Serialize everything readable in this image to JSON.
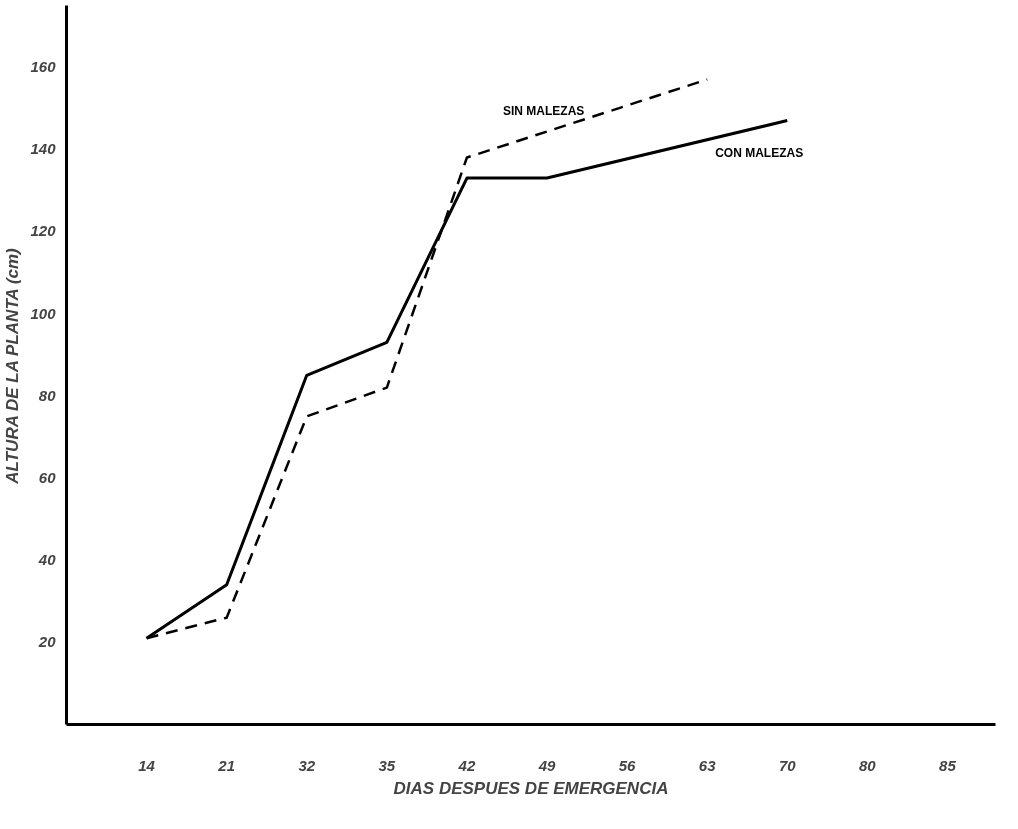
{
  "chart_data": {
    "type": "line",
    "xlabel": "DIAS DESPUES DE EMERGENCIA",
    "ylabel": "ALTURA DE LA PLANTA (cm)",
    "categories": [
      "14",
      "21",
      "32",
      "35",
      "42",
      "49",
      "56",
      "63",
      "70",
      "80",
      "85"
    ],
    "ylim": [
      0,
      175
    ],
    "yticks": [
      20,
      40,
      60,
      80,
      100,
      120,
      140,
      160
    ],
    "series": [
      {
        "name": "SIN MALEZAS",
        "color": "#000000",
        "line_style": "dashed",
        "values": [
          21,
          26,
          75,
          82,
          138,
          null,
          null,
          157,
          null,
          null,
          null
        ]
      },
      {
        "name": "CON MALEZAS",
        "color": "#000000",
        "line_style": "solid",
        "values": [
          21,
          34,
          85,
          93,
          133,
          133,
          null,
          null,
          147,
          null,
          null
        ]
      }
    ],
    "grid": false,
    "legend": false,
    "marker": "none"
  }
}
